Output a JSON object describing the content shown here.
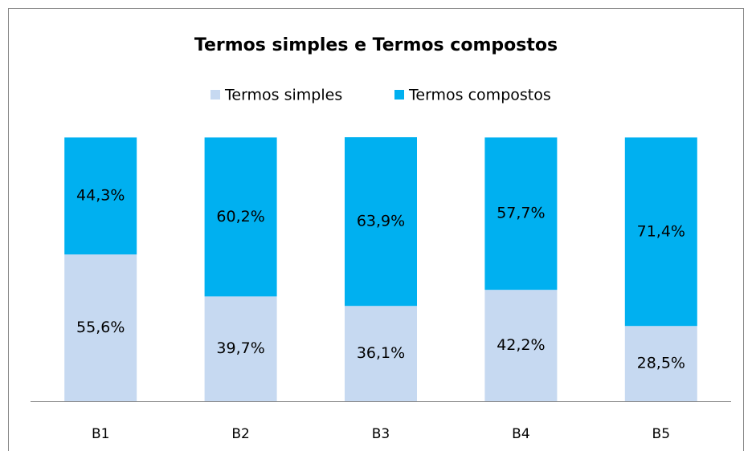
{
  "chart_data": {
    "type": "stacked_bar",
    "title": "Termos simples e Termos compostos",
    "categories": [
      "B1",
      "B2",
      "B3",
      "B4",
      "B5"
    ],
    "series": [
      {
        "name": "Termos simples",
        "color": "#c6d9f1",
        "values": [
          55.6,
          39.7,
          36.1,
          42.2,
          28.5
        ],
        "value_labels": [
          "55,6%",
          "39,7%",
          "36,1%",
          "42,2%",
          "28,5%"
        ]
      },
      {
        "name": "Termos compostos",
        "color": "#00b0f0",
        "values": [
          44.3,
          60.2,
          63.9,
          57.7,
          71.4
        ],
        "value_labels": [
          "44,3%",
          "60,2%",
          "63,9%",
          "57,7%",
          "71,4%"
        ]
      }
    ],
    "ylim": [
      0,
      100
    ],
    "legend": "top"
  }
}
